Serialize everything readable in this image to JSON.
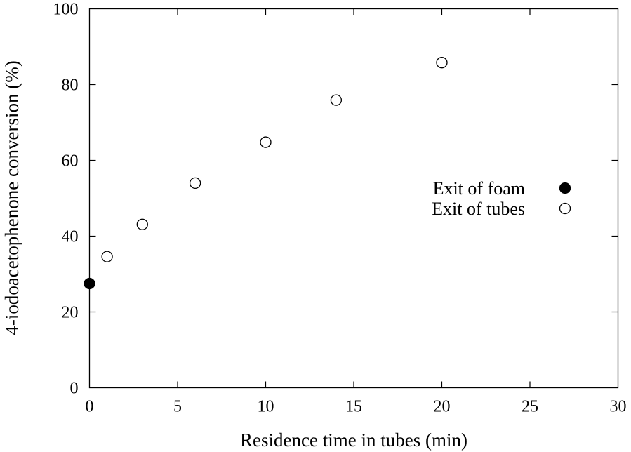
{
  "chart_data": {
    "type": "scatter",
    "title": "",
    "xlabel": "Residence time in tubes (min)",
    "ylabel": "4-iodoacetophenone conversion (%)",
    "xlim": [
      0,
      30
    ],
    "ylim": [
      0,
      100
    ],
    "xticks": [
      0,
      5,
      10,
      15,
      20,
      25,
      30
    ],
    "yticks": [
      0,
      20,
      40,
      60,
      80,
      100
    ],
    "grid": false,
    "legend_position": "center-right",
    "series": [
      {
        "name": "Exit of foam",
        "marker": "filled-circle",
        "color": "#000000",
        "points": [
          {
            "x": 0,
            "y": 27.5
          }
        ]
      },
      {
        "name": "Exit of tubes",
        "marker": "open-circle",
        "color": "#000000",
        "points": [
          {
            "x": 1,
            "y": 34.6
          },
          {
            "x": 3,
            "y": 43.1
          },
          {
            "x": 6,
            "y": 54.0
          },
          {
            "x": 10,
            "y": 64.8
          },
          {
            "x": 14,
            "y": 75.9
          },
          {
            "x": 20,
            "y": 85.8
          }
        ]
      }
    ]
  }
}
